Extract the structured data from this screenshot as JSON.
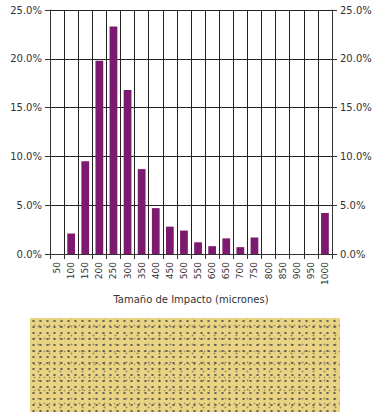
{
  "chart_data": {
    "type": "bar",
    "x_label": "Tamaño de Impacto (micrones)",
    "categories": [
      "50",
      "100",
      "150",
      "200",
      "250",
      "300",
      "350",
      "400",
      "450",
      "500",
      "550",
      "600",
      "650",
      "700",
      "750",
      "800",
      "850",
      "900",
      "950",
      "1000"
    ],
    "values": [
      0,
      2.1,
      9.5,
      19.8,
      23.3,
      16.8,
      8.7,
      4.7,
      2.8,
      2.4,
      1.2,
      0.8,
      1.6,
      0.7,
      1.7,
      0,
      0,
      0,
      0,
      4.2
    ],
    "color": "#7b1a6e",
    "ylim": [
      0,
      25
    ],
    "yticks": [
      {
        "value": 0,
        "label": "0.0%"
      },
      {
        "value": 5,
        "label": "5.0%"
      },
      {
        "value": 10,
        "label": "10.0%"
      },
      {
        "value": 15,
        "label": "15.0%"
      },
      {
        "value": 20,
        "label": "20.0%"
      },
      {
        "value": 25,
        "label": "25.0%"
      }
    ],
    "y2lim": [
      0,
      25
    ],
    "y2ticks": [
      {
        "value": 0,
        "label": "0.0%"
      },
      {
        "value": 5,
        "label": "5.0%"
      },
      {
        "value": 10,
        "label": "10.0%"
      },
      {
        "value": 15,
        "label": "15.0%"
      },
      {
        "value": 20,
        "label": "20.0%"
      },
      {
        "value": 25,
        "label": "25.0%"
      }
    ],
    "grid": true
  }
}
